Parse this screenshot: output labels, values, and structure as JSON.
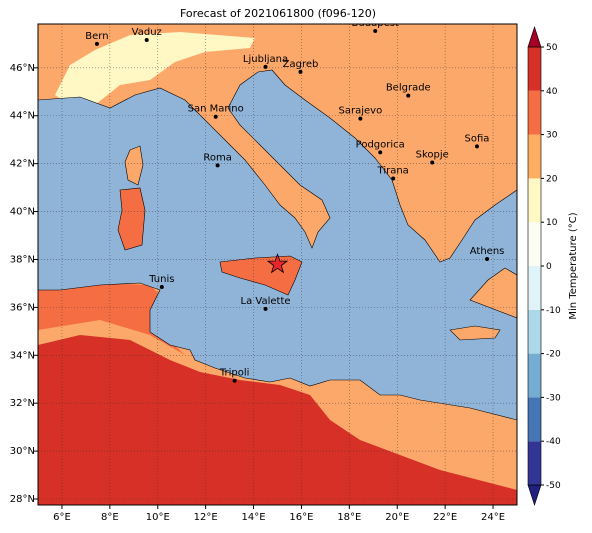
{
  "title": "Forecast of 2021061800 (f096-120)",
  "map": {
    "xlim": [
      5,
      25
    ],
    "ylim": [
      27.75,
      47.83
    ],
    "xticks": [
      {
        "value": 6,
        "label": "6°E"
      },
      {
        "value": 8,
        "label": "8°E"
      },
      {
        "value": 10,
        "label": "10°E"
      },
      {
        "value": 12,
        "label": "12°E"
      },
      {
        "value": 14,
        "label": "14°E"
      },
      {
        "value": 16,
        "label": "16°E"
      },
      {
        "value": 18,
        "label": "18°E"
      },
      {
        "value": 20,
        "label": "20°E"
      },
      {
        "value": 22,
        "label": "22°E"
      },
      {
        "value": 24,
        "label": "24°E"
      }
    ],
    "yticks": [
      {
        "value": 28,
        "label": "28°N"
      },
      {
        "value": 30,
        "label": "30°N"
      },
      {
        "value": 32,
        "label": "32°N"
      },
      {
        "value": 34,
        "label": "34°N"
      },
      {
        "value": 36,
        "label": "36°N"
      },
      {
        "value": 38,
        "label": "38°N"
      },
      {
        "value": 40,
        "label": "40°N"
      },
      {
        "value": 42,
        "label": "42°N"
      },
      {
        "value": 44,
        "label": "44°N"
      },
      {
        "value": 46,
        "label": "46°N"
      }
    ],
    "cities": [
      {
        "name": "Bern",
        "lon": 7.46,
        "lat": 47.0
      },
      {
        "name": "Vaduz",
        "lon": 9.54,
        "lat": 47.16
      },
      {
        "name": "Budapest",
        "lon": 19.08,
        "lat": 47.54
      },
      {
        "name": "Ljubljana",
        "lon": 14.5,
        "lat": 46.04
      },
      {
        "name": "Zagreb",
        "lon": 15.96,
        "lat": 45.83
      },
      {
        "name": "Belgrade",
        "lon": 20.46,
        "lat": 44.84
      },
      {
        "name": "San Marino",
        "lon": 12.42,
        "lat": 43.96
      },
      {
        "name": "Sarajevo",
        "lon": 18.46,
        "lat": 43.88
      },
      {
        "name": "Sofia",
        "lon": 23.33,
        "lat": 42.72
      },
      {
        "name": "Roma",
        "lon": 12.5,
        "lat": 41.93
      },
      {
        "name": "Podgorica",
        "lon": 19.29,
        "lat": 42.47
      },
      {
        "name": "Skopje",
        "lon": 21.46,
        "lat": 42.05
      },
      {
        "name": "Tirana",
        "lon": 19.83,
        "lat": 41.38
      },
      {
        "name": "Athens",
        "lon": 23.75,
        "lat": 38.02
      },
      {
        "name": "Tunis",
        "lon": 10.17,
        "lat": 36.85
      },
      {
        "name": "La Valette",
        "lon": 14.5,
        "lat": 35.94
      },
      {
        "name": "Tripoli",
        "lon": 13.21,
        "lat": 32.94
      }
    ],
    "marker": {
      "lon": 15.0,
      "lat": 37.8
    }
  },
  "colorbar": {
    "label": "Min Temperature (°C)",
    "ticks": [
      -50,
      -40,
      -30,
      -20,
      -10,
      0,
      10,
      20,
      30,
      40,
      50
    ],
    "colors": [
      "#313695",
      "#4575b4",
      "#74add1",
      "#abd9e9",
      "#e0f3f8",
      "#fbfdf2",
      "#fff7c4",
      "#fdae61",
      "#f46d43",
      "#d73027"
    ],
    "over_color": "#a50026",
    "under_color": "#202080"
  }
}
